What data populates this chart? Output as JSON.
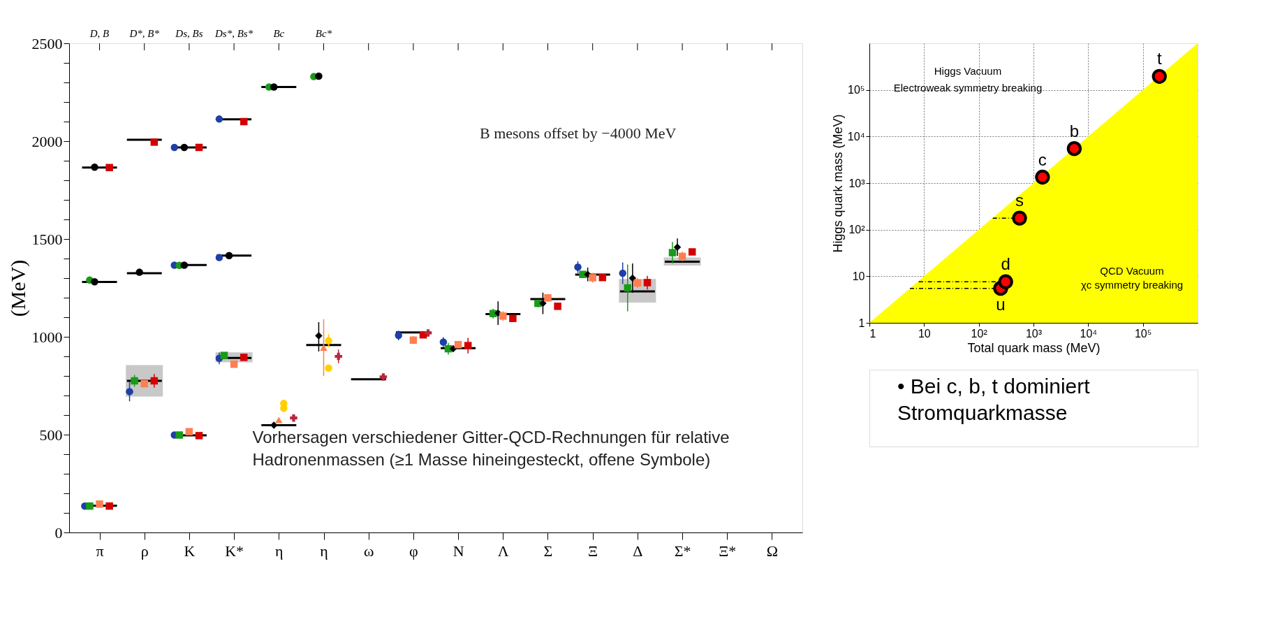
{
  "chart_data": [
    {
      "type": "scatter",
      "ylabel": "(MeV)",
      "categories": [
        "π",
        "ρ",
        "K",
        "K*",
        "η",
        "η",
        "ω",
        "φ",
        "N",
        "Λ",
        "Σ",
        "Ξ",
        "Δ",
        "Σ*",
        "Ξ*",
        "Ω"
      ],
      "ylim": [
        0,
        2500
      ],
      "yticks": [
        0,
        {
          "value": 100,
          "label": null
        },
        {
          "value": 200,
          "label": null
        },
        {
          "value": 300,
          "label": null
        },
        {
          "value": 400,
          "label": null
        },
        500,
        {
          "value": 600,
          "label": null
        },
        {
          "value": 700,
          "label": null
        },
        {
          "value": 800,
          "label": null
        },
        {
          "value": 900,
          "label": null
        },
        1000,
        {
          "value": 1100,
          "label": null
        },
        {
          "value": 1200,
          "label": null
        },
        {
          "value": 1300,
          "label": null
        },
        {
          "value": 1400,
          "label": null
        },
        1500,
        {
          "value": 1600,
          "label": null
        },
        {
          "value": 1700,
          "label": null
        },
        {
          "value": 1800,
          "label": null
        },
        {
          "value": 1900,
          "label": null
        },
        2000,
        {
          "value": 2100,
          "label": null
        },
        {
          "value": 2200,
          "label": null
        },
        {
          "value": 2300,
          "label": null
        },
        {
          "value": 2400,
          "label": null
        },
        2500
      ],
      "grid": false,
      "annotations": [
        "D, B",
        "D*, B*",
        "Ds, Bs",
        "Ds*, Bs*",
        "Bc",
        "Bc*",
        "B mesons offset by −4000 MeV",
        "Vorhersagen verschiedener Gitter-QCD-Rechnungen für relative\nHadronenmassen (≥1 Masse hineingesteckt, offene Symbole)"
      ],
      "series": [
        {
          "type": "bar",
          "color": "#c8c8c8",
          "base": [
            null,
            700,
            null,
            875,
            null,
            null,
            null,
            null,
            null,
            null,
            null,
            null,
            1180,
            1370,
            null,
            null
          ],
          "values": [
            null,
            150,
            null,
            40,
            null,
            null,
            null,
            null,
            null,
            null,
            null,
            null,
            110,
            30,
            null,
            null
          ]
        },
        {
          "type": "bar",
          "color": "#000000",
          "base": [
            137,
            775,
            496,
            892,
            548,
            958,
            783,
            1022,
            942,
            1116,
            1193,
            1318,
            1232,
            1384,
            null,
            null
          ],
          "values": [
            0,
            0,
            0,
            0,
            0,
            0,
            0,
            0,
            0,
            0,
            0,
            0,
            0,
            0,
            null,
            null
          ]
        },
        {
          "type": "bar",
          "color": "#000000",
          "base": [
            1865,
            2007,
            1968,
            2112,
            2277,
            null,
            null,
            null,
            null,
            null,
            null,
            null,
            null,
            null,
            null,
            null
          ],
          "values": [
            0,
            0,
            0,
            0,
            0,
            null,
            null,
            null,
            null,
            null,
            null,
            null,
            null,
            null,
            null,
            null
          ]
        },
        {
          "type": "bar",
          "color": "#000000",
          "base": [
            1280,
            1325,
            1367,
            1415,
            null,
            null,
            null,
            null,
            null,
            null,
            null,
            null,
            null,
            null,
            null,
            null
          ],
          "values": [
            0,
            0,
            0,
            0,
            null,
            null,
            null,
            null,
            null,
            null,
            null,
            null,
            null,
            null,
            null,
            null
          ]
        },
        {
          "color": "#1f3fa8",
          "marker": "circle",
          "values": [
            null,
            720,
            null,
            890,
            null,
            null,
            null,
            1007,
            973,
            null,
            null,
            1356,
            1325,
            null,
            null,
            null
          ],
          "errors": [
            null,
            [
              670,
              770
            ],
            null,
            30,
            null,
            null,
            null,
            25,
            25,
            null,
            null,
            30,
            55,
            null,
            null,
            null
          ]
        },
        {
          "color": "#1f3fa8",
          "marker": "circle",
          "values": [
            null,
            null,
            null,
            2113,
            null,
            null,
            null,
            null,
            null,
            null,
            null,
            null,
            null,
            null,
            null,
            null
          ]
        },
        {
          "color": "#1f3fa8",
          "marker": "circle",
          "values": [
            null,
            null,
            null,
            1405,
            null,
            null,
            null,
            null,
            null,
            null,
            null,
            null,
            null,
            null,
            null,
            null
          ]
        },
        {
          "color": "#1f3fa8",
          "marker": "circle",
          "values": [
            135,
            null,
            498,
            null,
            null,
            null,
            null,
            null,
            null,
            null,
            null,
            null,
            null,
            null,
            null,
            null
          ]
        },
        {
          "color": "#1f3fa8",
          "marker": "circle",
          "values": [
            null,
            null,
            1968,
            null,
            null,
            null,
            null,
            null,
            null,
            null,
            null,
            null,
            null,
            null,
            null,
            null
          ]
        },
        {
          "color": "#1f3fa8",
          "marker": "circle",
          "values": [
            null,
            null,
            1366,
            null,
            null,
            null,
            null,
            null,
            null,
            null,
            null,
            null,
            null,
            null,
            null,
            null
          ]
        },
        {
          "color": "#1a9a1a",
          "marker": "square",
          "values": [
            null,
            775,
            null,
            905,
            null,
            null,
            null,
            null,
            939,
            1119,
            1171,
            null,
            1250,
            1430,
            null,
            null
          ],
          "errors": [
            null,
            30,
            null,
            null,
            null,
            null,
            null,
            null,
            30,
            25,
            20,
            null,
            [
              1130,
              1370
            ],
            55,
            null,
            null
          ]
        },
        {
          "color": "#1a9a1a",
          "marker": "square",
          "values": [
            135,
            null,
            498,
            null,
            null,
            null,
            null,
            null,
            null,
            null,
            null,
            1319,
            null,
            null,
            null,
            null
          ]
        },
        {
          "color": "#1a9a1a",
          "marker": "circle",
          "values": [
            1290,
            null,
            1365,
            null,
            2277,
            2330,
            null,
            null,
            null,
            null,
            null,
            null,
            null,
            null,
            null,
            null
          ]
        },
        {
          "color": "#000000",
          "marker": "diamond",
          "values": [
            null,
            null,
            null,
            null,
            548,
            1005,
            null,
            null,
            null,
            1121,
            1171,
            1319,
            1300,
            1458,
            null,
            null
          ],
          "errors": [
            null,
            null,
            null,
            null,
            null,
            [
              925,
              1075
            ],
            null,
            null,
            null,
            60,
            55,
            35,
            75,
            45,
            null,
            null
          ]
        },
        {
          "color": "#000000",
          "marker": "diamond",
          "values": [
            null,
            null,
            null,
            null,
            null,
            null,
            null,
            null,
            939,
            null,
            null,
            null,
            null,
            null,
            null,
            null
          ]
        },
        {
          "color": "#000000",
          "marker": "circle",
          "values": [
            1867,
            null,
            1968,
            null,
            2277,
            2332,
            null,
            null,
            null,
            null,
            null,
            null,
            null,
            null,
            null,
            null
          ]
        },
        {
          "color": "#000000",
          "marker": "circle",
          "values": [
            1281,
            1330,
            1366,
            1415,
            null,
            null,
            null,
            null,
            null,
            null,
            null,
            null,
            null,
            null,
            null,
            null
          ]
        },
        {
          "color": "#ff7f50",
          "marker": "triangle",
          "values": [
            null,
            null,
            null,
            null,
            575,
            945,
            null,
            null,
            null,
            null,
            null,
            null,
            null,
            null,
            null,
            null
          ],
          "errors": [
            null,
            null,
            null,
            null,
            null,
            [
              800,
              1090
            ],
            null,
            null,
            null,
            null,
            null,
            null,
            null,
            null,
            null,
            null
          ]
        },
        {
          "color": "#ffd000",
          "marker": "circle",
          "values": [
            null,
            null,
            null,
            null,
            660,
            980,
            null,
            null,
            null,
            null,
            null,
            null,
            null,
            null,
            null,
            null
          ],
          "errors": [
            null,
            null,
            null,
            null,
            null,
            35,
            null,
            null,
            null,
            null,
            null,
            null,
            null,
            null,
            null,
            null
          ]
        },
        {
          "color": "#ffd000",
          "marker": "circle",
          "values": [
            null,
            null,
            null,
            null,
            635,
            840,
            null,
            null,
            null,
            null,
            null,
            null,
            null,
            null,
            null,
            null
          ]
        },
        {
          "color": "#ff7f50",
          "marker": "square",
          "values": [
            null,
            760,
            null,
            860,
            null,
            null,
            null,
            983,
            null,
            1106,
            1199,
            1302,
            1275,
            1411,
            null,
            null
          ],
          "errors": [
            null,
            null,
            null,
            null,
            null,
            null,
            null,
            20,
            null,
            25,
            20,
            25,
            25,
            25,
            null,
            null
          ]
        },
        {
          "color": "#ff7f50",
          "marker": "square",
          "values": [
            145,
            null,
            515,
            null,
            null,
            null,
            null,
            null,
            960,
            null,
            null,
            null,
            null,
            null,
            null,
            null
          ]
        },
        {
          "color": "#d40000",
          "marker": "square",
          "values": [
            null,
            775,
            null,
            895,
            null,
            null,
            null,
            1010,
            955,
            1094,
            1156,
            1303,
            1277,
            1434,
            null,
            null
          ],
          "errors": [
            null,
            35,
            null,
            null,
            null,
            null,
            null,
            null,
            40,
            null,
            null,
            null,
            35,
            null,
            null,
            null
          ]
        },
        {
          "color": "#d40000",
          "marker": "square",
          "values": [
            null,
            1995,
            null,
            2100,
            null,
            null,
            null,
            null,
            null,
            null,
            null,
            null,
            null,
            null,
            null,
            null
          ]
        },
        {
          "color": "#d40000",
          "marker": "square",
          "values": [
            135,
            null,
            495,
            null,
            null,
            null,
            null,
            null,
            null,
            null,
            null,
            null,
            null,
            null,
            null,
            null
          ]
        },
        {
          "color": "#d40000",
          "marker": "square",
          "values": [
            1865,
            null,
            1968,
            null,
            null,
            null,
            null,
            null,
            null,
            null,
            null,
            null,
            null,
            null,
            null,
            null
          ]
        },
        {
          "color": "#b8283a",
          "marker": "cross",
          "values": [
            null,
            null,
            null,
            null,
            585,
            900,
            795,
            1020,
            null,
            null,
            null,
            null,
            null,
            null,
            null,
            null
          ],
          "errors": [
            null,
            null,
            null,
            null,
            15,
            35,
            10,
            null,
            null,
            null,
            null,
            null,
            null,
            null,
            null,
            null
          ]
        }
      ]
    },
    {
      "type": "scatter",
      "xlabel": "Total quark mass (MeV)",
      "ylabel": "Higgs quark mass (MeV)",
      "log": "xy",
      "grid": true,
      "xlim": [
        1,
        1000000
      ],
      "ylim": [
        1,
        1000000
      ],
      "xticks": [
        1,
        10,
        {
          "value": 100,
          "label": "10²"
        },
        {
          "value": 1000,
          "label": "10³"
        },
        {
          "value": 10000,
          "label": "10⁴"
        },
        {
          "value": 100000,
          "label": "10⁵"
        }
      ],
      "yticks": [
        1,
        10,
        {
          "value": 100,
          "label": "10²"
        },
        {
          "value": 1000,
          "label": "10³"
        },
        {
          "value": 10000,
          "label": "10⁴"
        },
        {
          "value": 100000,
          "label": "10⁵"
        }
      ],
      "annotations": [
        "Higgs Vacuum",
        "Electroweak symmetry breaking",
        "QCD Vacuum",
        "χc symmetry breaking",
        {
          "text": "t",
          "x": 200000,
          "y": 195000
        },
        {
          "text": "b",
          "x": 5560,
          "y": 5500
        },
        {
          "text": "c",
          "x": 1460,
          "y": 1340
        },
        {
          "text": "s",
          "x": 556,
          "y": 177
        },
        {
          "text": "d",
          "x": 310,
          "y": 7.6
        },
        {
          "text": "u",
          "x": 251,
          "y": 5.5
        }
      ],
      "series": [
        {
          "type": "area",
          "color": "#ffff00",
          "x": [
            1,
            1000000
          ],
          "values": [
            1,
            1000000
          ]
        },
        {
          "type": "line",
          "line_style": "dashed",
          "color": "#000000",
          "x": [
            180,
            556
          ],
          "values": [
            177,
            177
          ]
        },
        {
          "type": "line",
          "line_style": "dashed",
          "color": "#000000",
          "x": [
            8,
            310
          ],
          "values": [
            7.6,
            7.6
          ]
        },
        {
          "type": "line",
          "line_style": "dashed",
          "color": "#000000",
          "x": [
            5.5,
            251
          ],
          "values": [
            5.5,
            5.5
          ]
        },
        {
          "color": "#ff0000",
          "marker": "circle",
          "x": [
            251,
            310,
            556,
            1460,
            5560,
            200000
          ],
          "values": [
            5.5,
            7.6,
            177,
            1340,
            5500,
            195000
          ]
        }
      ]
    },
    {
      "type": "other",
      "annotations": [
        "• Bei c, b, t dominiert\nStromquarkmasse"
      ]
    }
  ]
}
